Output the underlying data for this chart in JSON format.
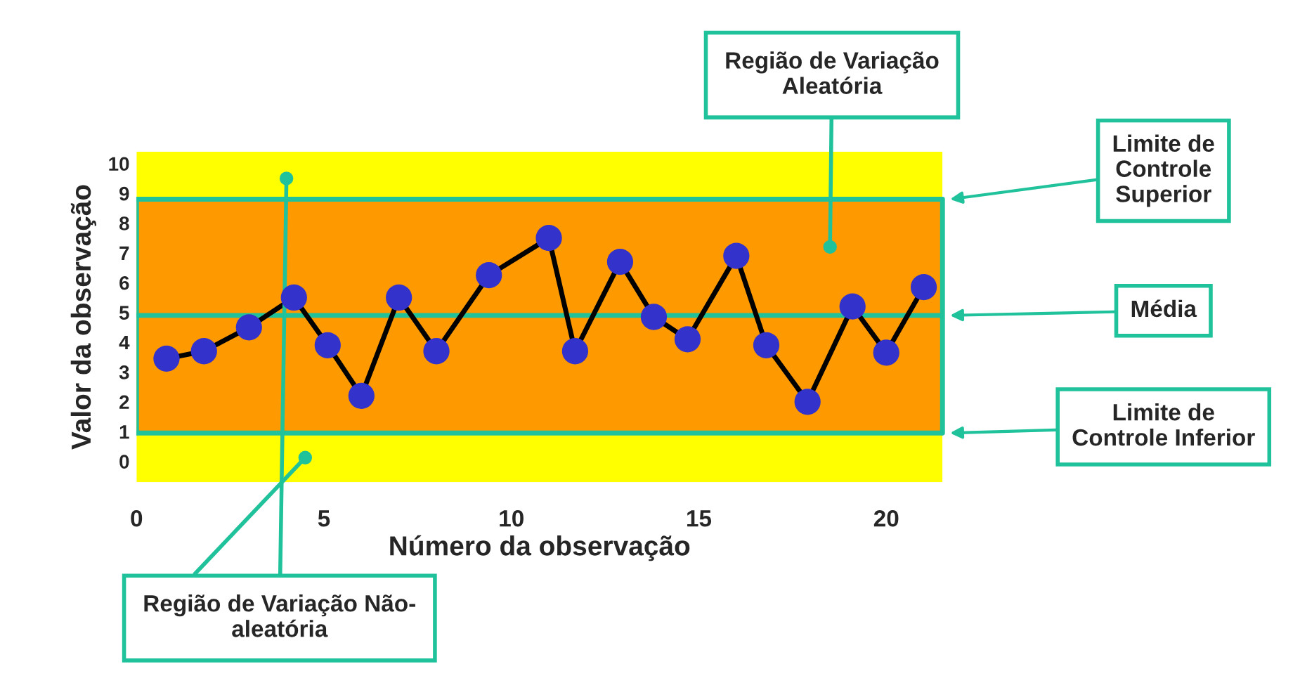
{
  "chart_data": {
    "type": "line",
    "xlabel": "Número da observação",
    "ylabel": "Valor da observação",
    "series": [
      {
        "color": "#3333cc",
        "x": [
          0.8,
          1.8,
          3.0,
          4.2,
          5.1,
          6.0,
          7.0,
          8.0,
          9.4,
          11.0,
          11.7,
          12.9,
          13.8,
          14.7,
          16.0,
          16.8,
          17.9,
          19.1,
          20.0,
          21.0
        ],
        "values": [
          3.45,
          3.7,
          4.5,
          5.5,
          3.9,
          2.2,
          5.5,
          3.7,
          6.25,
          7.5,
          3.7,
          6.7,
          4.85,
          4.1,
          6.9,
          3.9,
          2.0,
          5.2,
          3.65,
          5.85
        ]
      }
    ],
    "marker": "circle",
    "line_style": "solid",
    "xlim": [
      0,
      21.5
    ],
    "ylim": [
      -0.7,
      10.4
    ],
    "xticks": [
      0,
      5,
      10,
      15,
      20
    ],
    "yticks": [
      0,
      1,
      2,
      3,
      4,
      5,
      6,
      7,
      8,
      9,
      10
    ],
    "bands": [
      {
        "axis": "y",
        "from": -0.7,
        "to": 10.4,
        "color": "#ffff00"
      },
      {
        "axis": "y",
        "from": 0.95,
        "to": 8.8,
        "color": "#ff9900"
      }
    ],
    "ref_lines": [
      {
        "axis": "y",
        "value": 8.8,
        "label": "Limite de Controle Superior",
        "color": "#1fc29a"
      },
      {
        "axis": "y",
        "value": 4.9,
        "label": "Média",
        "color": "#1fc29a"
      },
      {
        "axis": "y",
        "value": 0.95,
        "label": "Limite de Controle Inferior",
        "color": "#1fc29a"
      }
    ],
    "annotations": [
      {
        "text": "Região de Variação Aleatória",
        "x": 18.5,
        "y": 7.2
      },
      {
        "text": "Região de Variação Não-aleatória",
        "x": 4.0,
        "y": 9.5
      }
    ],
    "grid": false,
    "legend": false
  }
}
